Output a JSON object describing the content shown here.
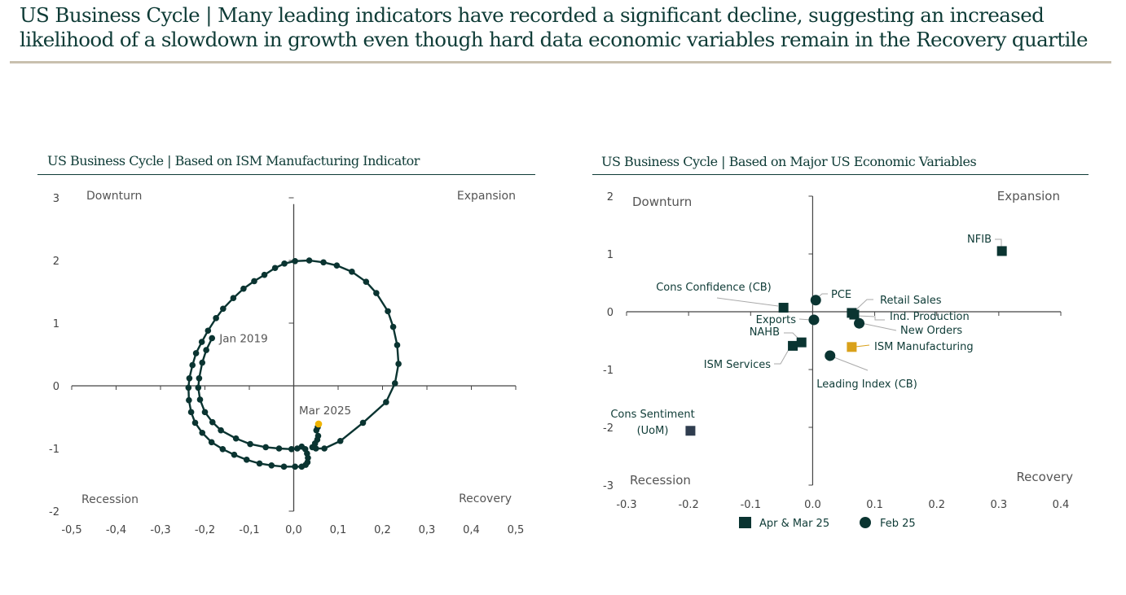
{
  "header": {
    "title": "US Business Cycle | Many leading indicators have recorded a significant decline, suggesting an increased likelihood of a slowdown in growth even though hard data economic variables remain in the Recovery quartile"
  },
  "colors": {
    "primary": "#0a3431",
    "highlight": "#f0b400",
    "ism_manufacturing": "#d9a11a",
    "cons_sentiment": "#2f3d4f",
    "axis": "#444444",
    "leader": "#aaaaaa",
    "title_rule": "#c9c0ae"
  },
  "chart_data": [
    {
      "type": "line",
      "title": "US Business Cycle | Based on ISM Manufacturing Indicator",
      "xlabel": "",
      "ylabel": "",
      "xlim": [
        -0.5,
        0.5
      ],
      "ylim": [
        -2,
        3
      ],
      "x_ticks": [
        "-0,5",
        "-0,4",
        "-0,3",
        "-0,2",
        "-0,1",
        "0,0",
        "0,1",
        "0,2",
        "0,3",
        "0,4",
        "0,5"
      ],
      "y_ticks": [
        "3",
        "2",
        "1",
        "0",
        "-1",
        "-2"
      ],
      "quadrants": {
        "top_left": "Downturn",
        "top_right": "Expansion",
        "bottom_left": "Recession",
        "bottom_right": "Recovery"
      },
      "annotations": [
        {
          "text": "Jan 2019",
          "point_index": 0
        },
        {
          "text": "Mar 2025",
          "point_index": "last"
        }
      ],
      "series": [
        {
          "name": "ISM Manufacturing cycle path",
          "points": [
            [
              -0.184,
              0.76
            ],
            [
              -0.197,
              0.57
            ],
            [
              -0.206,
              0.37
            ],
            [
              -0.213,
              0.12
            ],
            [
              -0.215,
              -0.03
            ],
            [
              -0.211,
              -0.22
            ],
            [
              -0.2,
              -0.42
            ],
            [
              -0.183,
              -0.58
            ],
            [
              -0.164,
              -0.71
            ],
            [
              -0.13,
              -0.84
            ],
            [
              -0.098,
              -0.93
            ],
            [
              -0.063,
              -0.98
            ],
            [
              -0.033,
              -1.0
            ],
            [
              -0.005,
              -1.01
            ],
            [
              0.008,
              -1.0
            ],
            [
              0.018,
              -0.97
            ],
            [
              0.026,
              -1.01
            ],
            [
              0.03,
              -1.08
            ],
            [
              0.032,
              -1.15
            ],
            [
              0.031,
              -1.22
            ],
            [
              0.027,
              -1.26
            ],
            [
              0.018,
              -1.29
            ],
            [
              0.003,
              -1.29
            ],
            [
              -0.022,
              -1.29
            ],
            [
              -0.05,
              -1.27
            ],
            [
              -0.077,
              -1.24
            ],
            [
              -0.106,
              -1.18
            ],
            [
              -0.134,
              -1.1
            ],
            [
              -0.16,
              -1.01
            ],
            [
              -0.185,
              -0.9
            ],
            [
              -0.206,
              -0.75
            ],
            [
              -0.222,
              -0.59
            ],
            [
              -0.231,
              -0.42
            ],
            [
              -0.236,
              -0.23
            ],
            [
              -0.237,
              -0.03
            ],
            [
              -0.235,
              0.12
            ],
            [
              -0.228,
              0.33
            ],
            [
              -0.22,
              0.52
            ],
            [
              -0.207,
              0.7
            ],
            [
              -0.193,
              0.88
            ],
            [
              -0.175,
              1.08
            ],
            [
              -0.159,
              1.23
            ],
            [
              -0.136,
              1.4
            ],
            [
              -0.113,
              1.55
            ],
            [
              -0.089,
              1.67
            ],
            [
              -0.066,
              1.77
            ],
            [
              -0.042,
              1.88
            ],
            [
              -0.021,
              1.95
            ],
            [
              0.003,
              1.99
            ],
            [
              0.035,
              2.0
            ],
            [
              0.067,
              1.97
            ],
            [
              0.097,
              1.92
            ],
            [
              0.131,
              1.82
            ],
            [
              0.163,
              1.66
            ],
            [
              0.186,
              1.48
            ],
            [
              0.212,
              1.19
            ],
            [
              0.224,
              0.94
            ],
            [
              0.233,
              0.65
            ],
            [
              0.236,
              0.35
            ],
            [
              0.228,
              0.04
            ],
            [
              0.208,
              -0.26
            ],
            [
              0.156,
              -0.59
            ],
            [
              0.105,
              -0.88
            ],
            [
              0.069,
              -1.0
            ],
            [
              0.05,
              -1.0
            ],
            [
              0.042,
              -0.98
            ],
            [
              0.048,
              -0.92
            ],
            [
              0.053,
              -0.86
            ],
            [
              0.055,
              -0.8
            ],
            [
              0.051,
              -0.71
            ],
            [
              0.054,
              -0.66
            ],
            [
              0.056,
              -0.61
            ]
          ]
        }
      ]
    },
    {
      "type": "scatter",
      "title": "US Business Cycle | Based on Major US Economic Variables",
      "xlabel": "",
      "ylabel": "",
      "xlim": [
        -0.3,
        0.4
      ],
      "ylim": [
        -3,
        2
      ],
      "x_ticks": [
        "-0.3",
        "-0.2",
        "-0.1",
        "0.0",
        "0.1",
        "0.2",
        "0.3",
        "0.4"
      ],
      "y_ticks": [
        "2",
        "1",
        "0",
        "-1",
        "-2",
        "-3"
      ],
      "quadrants": {
        "top_left": "Downturn",
        "top_right": "Expansion",
        "bottom_left": "Recession",
        "bottom_right": "Recovery"
      },
      "legend": {
        "placement": "bottom",
        "entries": [
          {
            "label": "Apr & Mar 25",
            "marker": "square"
          },
          {
            "label": "Feb 25",
            "marker": "circle"
          }
        ]
      },
      "series": [
        {
          "name": "Apr & Mar 25",
          "marker": "square",
          "points": [
            {
              "label": "NFIB",
              "x": 0.305,
              "y": 1.05
            },
            {
              "label": "Cons Confidence (CB)",
              "x": -0.047,
              "y": 0.07
            },
            {
              "label": "Retail Sales",
              "x": 0.063,
              "y": -0.02
            },
            {
              "label": "Ind. Production",
              "x": 0.067,
              "y": -0.05
            },
            {
              "label": "NAHB",
              "x": -0.018,
              "y": -0.53
            },
            {
              "label": "ISM Services",
              "x": -0.032,
              "y": -0.59
            },
            {
              "label": "ISM Manufacturing",
              "x": 0.063,
              "y": -0.61,
              "color_key": "ism_manufacturing"
            },
            {
              "label": "Cons Sentiment (UoM)",
              "x": -0.197,
              "y": -2.06,
              "color_key": "cons_sentiment"
            }
          ]
        },
        {
          "name": "Feb 25",
          "marker": "circle",
          "points": [
            {
              "label": "PCE",
              "x": 0.005,
              "y": 0.2
            },
            {
              "label": "Exports",
              "x": 0.002,
              "y": -0.14
            },
            {
              "label": "New Orders",
              "x": 0.075,
              "y": -0.2
            },
            {
              "label": "Leading Index (CB)",
              "x": 0.028,
              "y": -0.76
            }
          ]
        }
      ]
    }
  ]
}
